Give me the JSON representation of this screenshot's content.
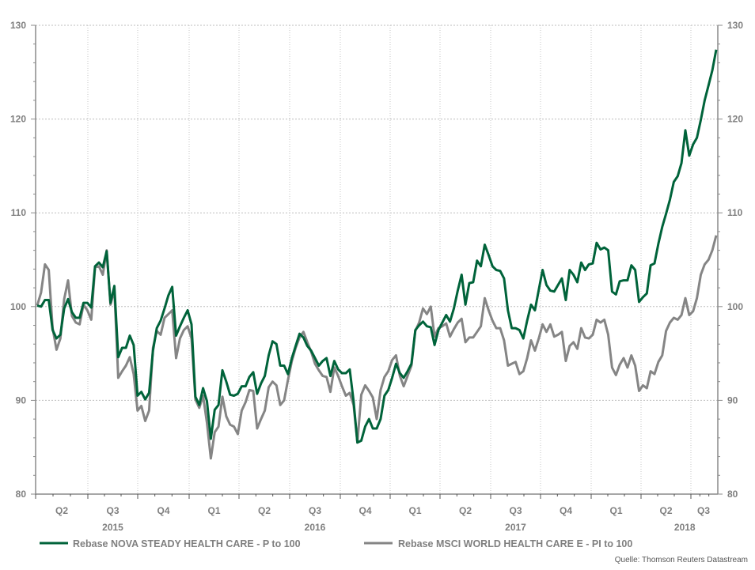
{
  "chart_data": {
    "type": "line",
    "title": "",
    "xlabel": "",
    "ylabel": "",
    "ylim": [
      80,
      130
    ],
    "y_ticks": [
      80,
      90,
      100,
      110,
      120,
      130
    ],
    "grid": true,
    "x_range": [
      "2015-04",
      "2018-08"
    ],
    "quarter_labels": [
      "Q2",
      "Q3",
      "Q4",
      "Q1",
      "Q2",
      "Q3",
      "Q4",
      "Q1",
      "Q2",
      "Q3",
      "Q4",
      "Q1",
      "Q2",
      "Q3"
    ],
    "year_labels": [
      {
        "label": "2015",
        "quarter_index": 1
      },
      {
        "label": "2016",
        "quarter_index": 5
      },
      {
        "label": "2017",
        "quarter_index": 9
      },
      {
        "label": "2018",
        "quarter_index": 12.5
      }
    ],
    "legend_position": "bottom",
    "source": "Quelle: Thomson Reuters Datastream",
    "series": [
      {
        "name": "Rebase NOVA STEADY HEALTH CARE - P to 100",
        "color": "#00633a",
        "frequency": "weekly",
        "values": [
          100.1,
          100.0,
          100.7,
          100.7,
          97.5,
          96.6,
          97.0,
          99.8,
          100.8,
          99.4,
          98.8,
          98.8,
          100.4,
          100.4,
          99.9,
          104.3,
          104.7,
          104.2,
          105.9,
          100.4,
          102.2,
          94.6,
          95.6,
          95.6,
          96.9,
          95.9,
          90.5,
          90.9,
          90.1,
          90.8,
          95.3,
          97.7,
          98.5,
          99.8,
          101.2,
          102.1,
          96.9,
          97.9,
          98.8,
          99.6,
          98.1,
          90.4,
          89.5,
          91.3,
          89.9,
          85.9,
          89.0,
          89.5,
          93.2,
          92.0,
          90.6,
          90.5,
          90.7,
          91.5,
          91.5,
          92.5,
          93.0,
          90.7,
          91.8,
          92.6,
          94.8,
          96.3,
          96.0,
          93.7,
          93.7,
          92.8,
          94.5,
          95.8,
          97.1,
          96.7,
          95.8,
          95.3,
          94.5,
          93.7,
          94.2,
          94.5,
          92.6,
          94.2,
          93.3,
          92.9,
          92.9,
          93.3,
          89.9,
          85.5,
          85.7,
          87.2,
          88.0,
          87.0,
          87.0,
          88.0,
          90.5,
          91.1,
          92.4,
          93.9,
          92.9,
          92.4,
          93.1,
          93.9,
          97.5,
          98.0,
          98.4,
          97.9,
          97.8,
          95.9,
          97.5,
          98.3,
          99.1,
          98.4,
          99.8,
          101.7,
          103.4,
          100.2,
          102.5,
          102.6,
          104.9,
          104.3,
          106.6,
          105.5,
          104.3,
          103.9,
          103.8,
          103.0,
          99.6,
          97.7,
          97.7,
          97.5,
          96.6,
          98.5,
          100.2,
          99.6,
          101.8,
          103.9,
          102.3,
          101.7,
          101.6,
          102.3,
          103.0,
          100.7,
          103.9,
          103.4,
          102.6,
          104.7,
          103.9,
          104.5,
          104.6,
          106.8,
          106.1,
          106.3,
          106.0,
          101.6,
          101.3,
          102.7,
          102.8,
          102.8,
          104.4,
          103.9,
          100.5,
          101.0,
          101.4,
          104.4,
          104.6,
          106.7,
          108.5,
          109.9,
          111.4,
          113.3,
          113.9,
          115.3,
          118.8,
          116.1,
          117.3,
          118.0,
          119.9,
          122.0,
          123.6,
          125.2,
          127.4
        ]
      },
      {
        "name": "Rebase MSCI WORLD HEALTH CARE E - PI to 100",
        "color": "#858585",
        "frequency": "weekly",
        "values": [
          100.1,
          101.5,
          104.5,
          103.9,
          97.7,
          95.4,
          96.6,
          100.8,
          102.8,
          99.0,
          98.3,
          98.1,
          100.2,
          99.6,
          98.6,
          104.2,
          104.3,
          103.4,
          106.0,
          100.2,
          101.8,
          92.4,
          93.1,
          93.7,
          94.6,
          92.8,
          88.9,
          89.4,
          87.8,
          88.9,
          95.6,
          97.4,
          97.0,
          98.8,
          99.2,
          99.6,
          94.5,
          96.6,
          97.5,
          97.9,
          96.6,
          90.1,
          89.2,
          90.5,
          87.6,
          83.8,
          86.6,
          87.2,
          90.4,
          88.3,
          87.4,
          87.2,
          86.4,
          88.9,
          89.8,
          91.1,
          91.0,
          87.0,
          88.0,
          88.9,
          91.4,
          92.0,
          91.6,
          89.5,
          90.0,
          92.2,
          94.2,
          95.6,
          96.7,
          97.3,
          96.2,
          95.2,
          93.9,
          93.2,
          92.6,
          92.5,
          90.9,
          93.5,
          92.6,
          91.5,
          90.5,
          90.8,
          89.5,
          85.5,
          90.6,
          91.6,
          91.0,
          90.3,
          88.0,
          91.1,
          92.5,
          93.1,
          94.3,
          94.8,
          92.6,
          91.5,
          92.6,
          93.7,
          97.4,
          98.3,
          99.8,
          99.2,
          100.0,
          96.8,
          97.7,
          97.9,
          98.2,
          96.8,
          97.6,
          98.3,
          98.7,
          96.2,
          96.7,
          96.7,
          97.3,
          97.9,
          100.9,
          99.6,
          98.5,
          97.7,
          97.7,
          96.4,
          93.7,
          93.9,
          94.1,
          92.8,
          93.1,
          94.5,
          96.4,
          95.3,
          96.6,
          98.1,
          97.3,
          98.1,
          96.8,
          97.0,
          97.3,
          94.2,
          95.8,
          96.2,
          95.5,
          97.7,
          96.7,
          96.6,
          97.0,
          98.6,
          98.3,
          98.6,
          97.0,
          93.5,
          92.7,
          93.8,
          94.5,
          93.5,
          94.8,
          93.7,
          91.0,
          91.6,
          91.3,
          93.1,
          92.8,
          94.1,
          94.8,
          97.4,
          98.3,
          98.8,
          98.6,
          99.1,
          100.9,
          99.1,
          99.5,
          100.9,
          103.4,
          104.5,
          105.0,
          106.0,
          107.6
        ]
      }
    ]
  }
}
